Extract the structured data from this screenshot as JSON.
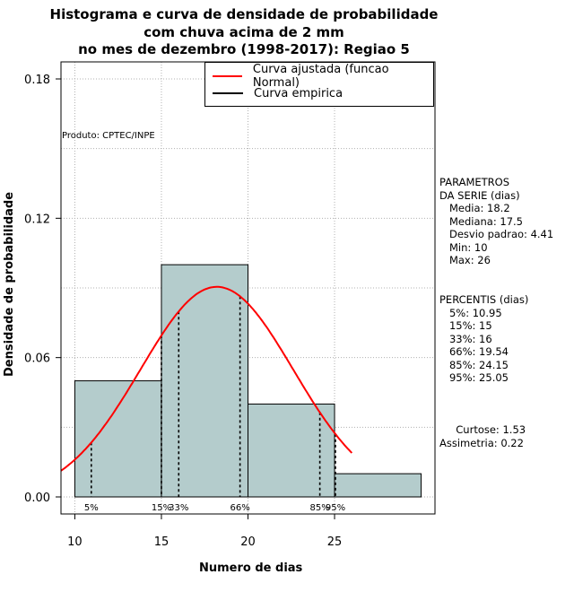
{
  "chart_data": {
    "type": "bar",
    "title": [
      "Histograma e curva de densidade de probabilidade",
      "com chuva acima de 2 mm",
      "no mes de dezembro (1998-2017): Regiao 5"
    ],
    "xlabel": "Numero de dias",
    "ylabel": "Densidade de probabilidade",
    "xlim": [
      9.2,
      30.8
    ],
    "ylim": [
      0,
      0.18
    ],
    "x_ticks": [
      10,
      15,
      20,
      25
    ],
    "y_ticks": [
      0.0,
      0.06,
      0.12,
      0.18
    ],
    "y_tick_labels": [
      "0.00",
      "0.06",
      "0.12",
      "0.18"
    ],
    "grid": true,
    "bins": [
      {
        "start": 10,
        "end": 15,
        "density": 0.05
      },
      {
        "start": 15,
        "end": 20,
        "density": 0.1
      },
      {
        "start": 20,
        "end": 25,
        "density": 0.04
      },
      {
        "start": 25,
        "end": 30,
        "density": 0.01
      }
    ],
    "fitted_curve": {
      "name": "Curva ajustada (funcao Normal)",
      "distribution": "normal",
      "mean": 18.2,
      "sd": 4.41,
      "x_range": [
        9.2,
        26
      ],
      "color": "#ff0000"
    },
    "empirical_curve": {
      "name": "Curva empirica",
      "color": "#000000"
    },
    "percentiles": [
      {
        "label": "5%",
        "x": 10.95
      },
      {
        "label": "15%",
        "x": 15
      },
      {
        "label": "33%",
        "x": 16
      },
      {
        "label": "66%",
        "x": 19.54
      },
      {
        "label": "85%",
        "x": 24.15
      },
      {
        "label": "95%",
        "x": 25.05
      }
    ],
    "legend_position": "top-right",
    "bar_color": "#b4cccc",
    "annotation": "Produto: CPTEC/INPE"
  },
  "side_panel": {
    "params_text": "PARAMETROS\nDA SERIE (dias)\n   Media: 18.2\n   Mediana: 17.5\n   Desvio padrao: 4.41\n   Min: 10\n   Max: 26",
    "percentis_text": "PERCENTIS (dias)\n   5%: 10.95\n   15%: 15\n   33%: 16\n   66%: 19.54\n   85%: 24.15\n   95%: 25.05",
    "curtose_text": "     Curtose: 1.53\nAssimetria: 0.22"
  }
}
